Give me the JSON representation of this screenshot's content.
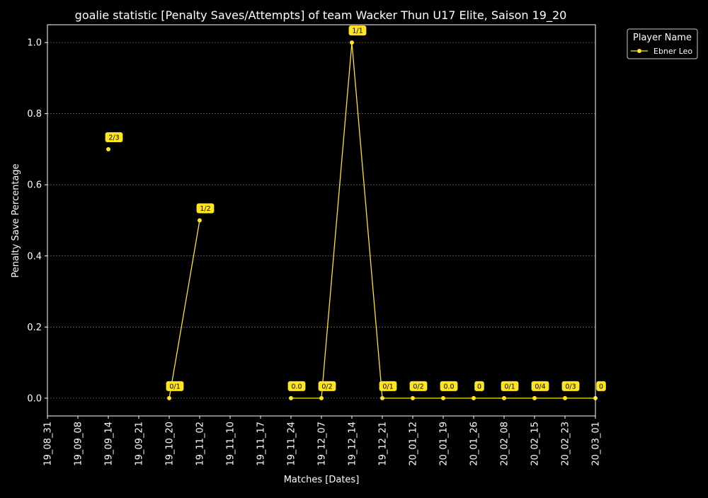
{
  "chart_data": {
    "type": "line",
    "title": "goalie statistic [Penalty Saves/Attempts] of team Wacker Thun U17 Elite, Saison 19_20",
    "xlabel": "Matches [Dates]",
    "ylabel": "Penalty Save Percentage",
    "categories": [
      "19_08_31",
      "19_09_08",
      "19_09_14",
      "19_09_21",
      "19_10_20",
      "19_11_02",
      "19_11_10",
      "19_11_17",
      "19_11_24",
      "19_12_07",
      "19_12_14",
      "19_12_21",
      "20_01_12",
      "20_01_19",
      "20_01_26",
      "20_02_08",
      "20_02_15",
      "20_02_23",
      "20_03_01"
    ],
    "ylim": [
      -0.05,
      1.05
    ],
    "yticks": [
      "0.0",
      "0.2",
      "0.4",
      "0.6",
      "0.8",
      "1.0"
    ],
    "ytick_values": [
      0,
      0.2,
      0.4,
      0.6,
      0.8,
      1.0
    ],
    "grid": true,
    "legend": {
      "title": "Player Name",
      "placement": "outside-top-right"
    },
    "series": [
      {
        "name": "Ebner Leo",
        "color": "#ffe51f",
        "values": [
          null,
          null,
          0.7,
          null,
          0.0,
          0.5,
          null,
          null,
          0.0,
          0.0,
          1.0,
          0.0,
          0.0,
          0.0,
          0.0,
          0.0,
          0.0,
          0.0,
          0.0
        ],
        "labels": [
          null,
          null,
          "2/3",
          null,
          "0/1",
          "1/2",
          null,
          null,
          "0.0",
          "0/2",
          "1/1",
          "0/1",
          "0/2",
          "0.0",
          "0",
          "0/1",
          "0/4",
          "0/3",
          "0"
        ]
      }
    ]
  }
}
